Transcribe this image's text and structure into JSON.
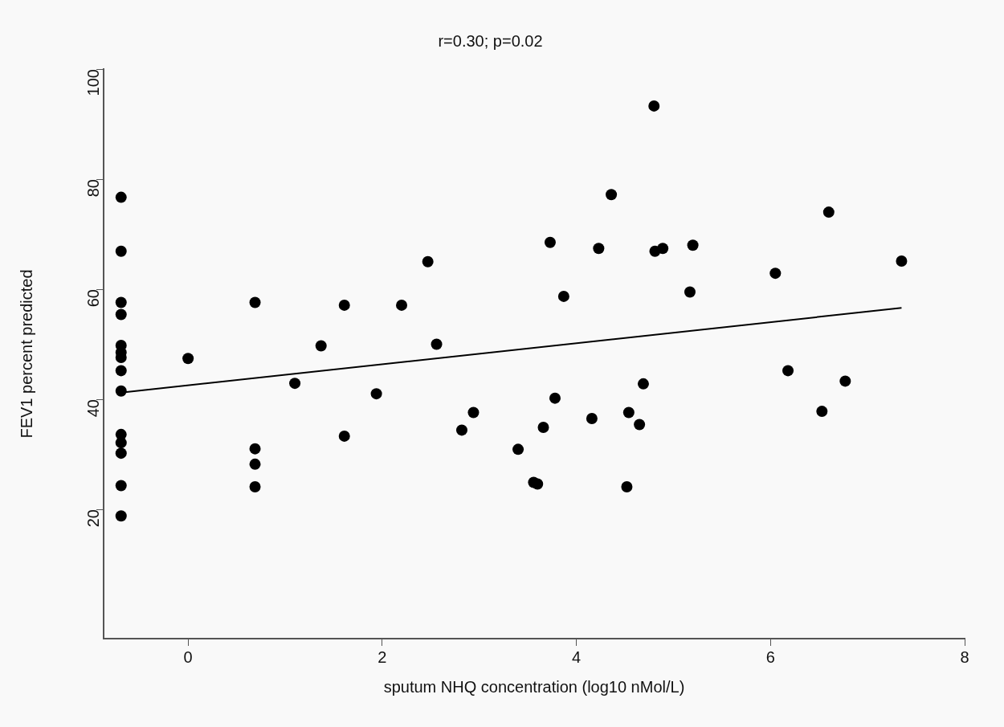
{
  "chart_data": {
    "type": "scatter",
    "title": "r=0.30; p=0.02",
    "xlabel": "sputum NHQ concentration (log10 nMol/L)",
    "ylabel": "FEV1 percent predicted",
    "xlim": [
      -0.87,
      8
    ],
    "xticks": [
      0,
      2,
      4,
      6,
      8
    ],
    "ylim": [
      -3.5,
      100
    ],
    "yticks": [
      20,
      40,
      60,
      80,
      100
    ],
    "grid": false,
    "legend": false,
    "marker": "circle",
    "series": [
      {
        "color": "#000000",
        "x": [
          -0.69,
          -0.69,
          -0.69,
          -0.69,
          -0.69,
          -0.69,
          -0.69,
          -0.69,
          -0.69,
          -0.69,
          -0.69,
          -0.69,
          -0.69,
          -0.69,
          0.0,
          0.69,
          0.69,
          0.69,
          0.69,
          1.1,
          1.37,
          1.61,
          1.61,
          1.94,
          2.2,
          2.47,
          2.56,
          3.73,
          4.36,
          4.8,
          4.23,
          4.81,
          4.89,
          5.2,
          5.17,
          6.6,
          6.05,
          7.35,
          3.87,
          6.18,
          6.77,
          6.53,
          4.69,
          2.94,
          2.82,
          3.78,
          3.66,
          4.16,
          4.54,
          4.65,
          3.4,
          3.56,
          3.6,
          4.52
        ],
        "values": [
          76.7,
          66.9,
          57.6,
          55.4,
          49.8,
          48.5,
          47.6,
          45.2,
          41.5,
          33.6,
          32.1,
          30.2,
          24.3,
          18.8,
          47.4,
          57.6,
          31.0,
          28.2,
          24.1,
          42.9,
          49.7,
          57.1,
          33.3,
          41.0,
          57.1,
          65.0,
          50.0,
          68.5,
          77.2,
          93.3,
          67.4,
          66.9,
          67.4,
          68.0,
          59.5,
          74.0,
          62.9,
          65.1,
          58.7,
          45.2,
          43.3,
          37.8,
          42.8,
          37.6,
          34.4,
          40.2,
          34.9,
          36.5,
          37.6,
          35.4,
          30.9,
          24.9,
          24.6,
          24.1
        ]
      },
      {
        "type": "line",
        "color": "#000000",
        "marker": "none",
        "x": [
          -0.69,
          7.35
        ],
        "values": [
          41.2,
          56.6
        ]
      }
    ]
  }
}
